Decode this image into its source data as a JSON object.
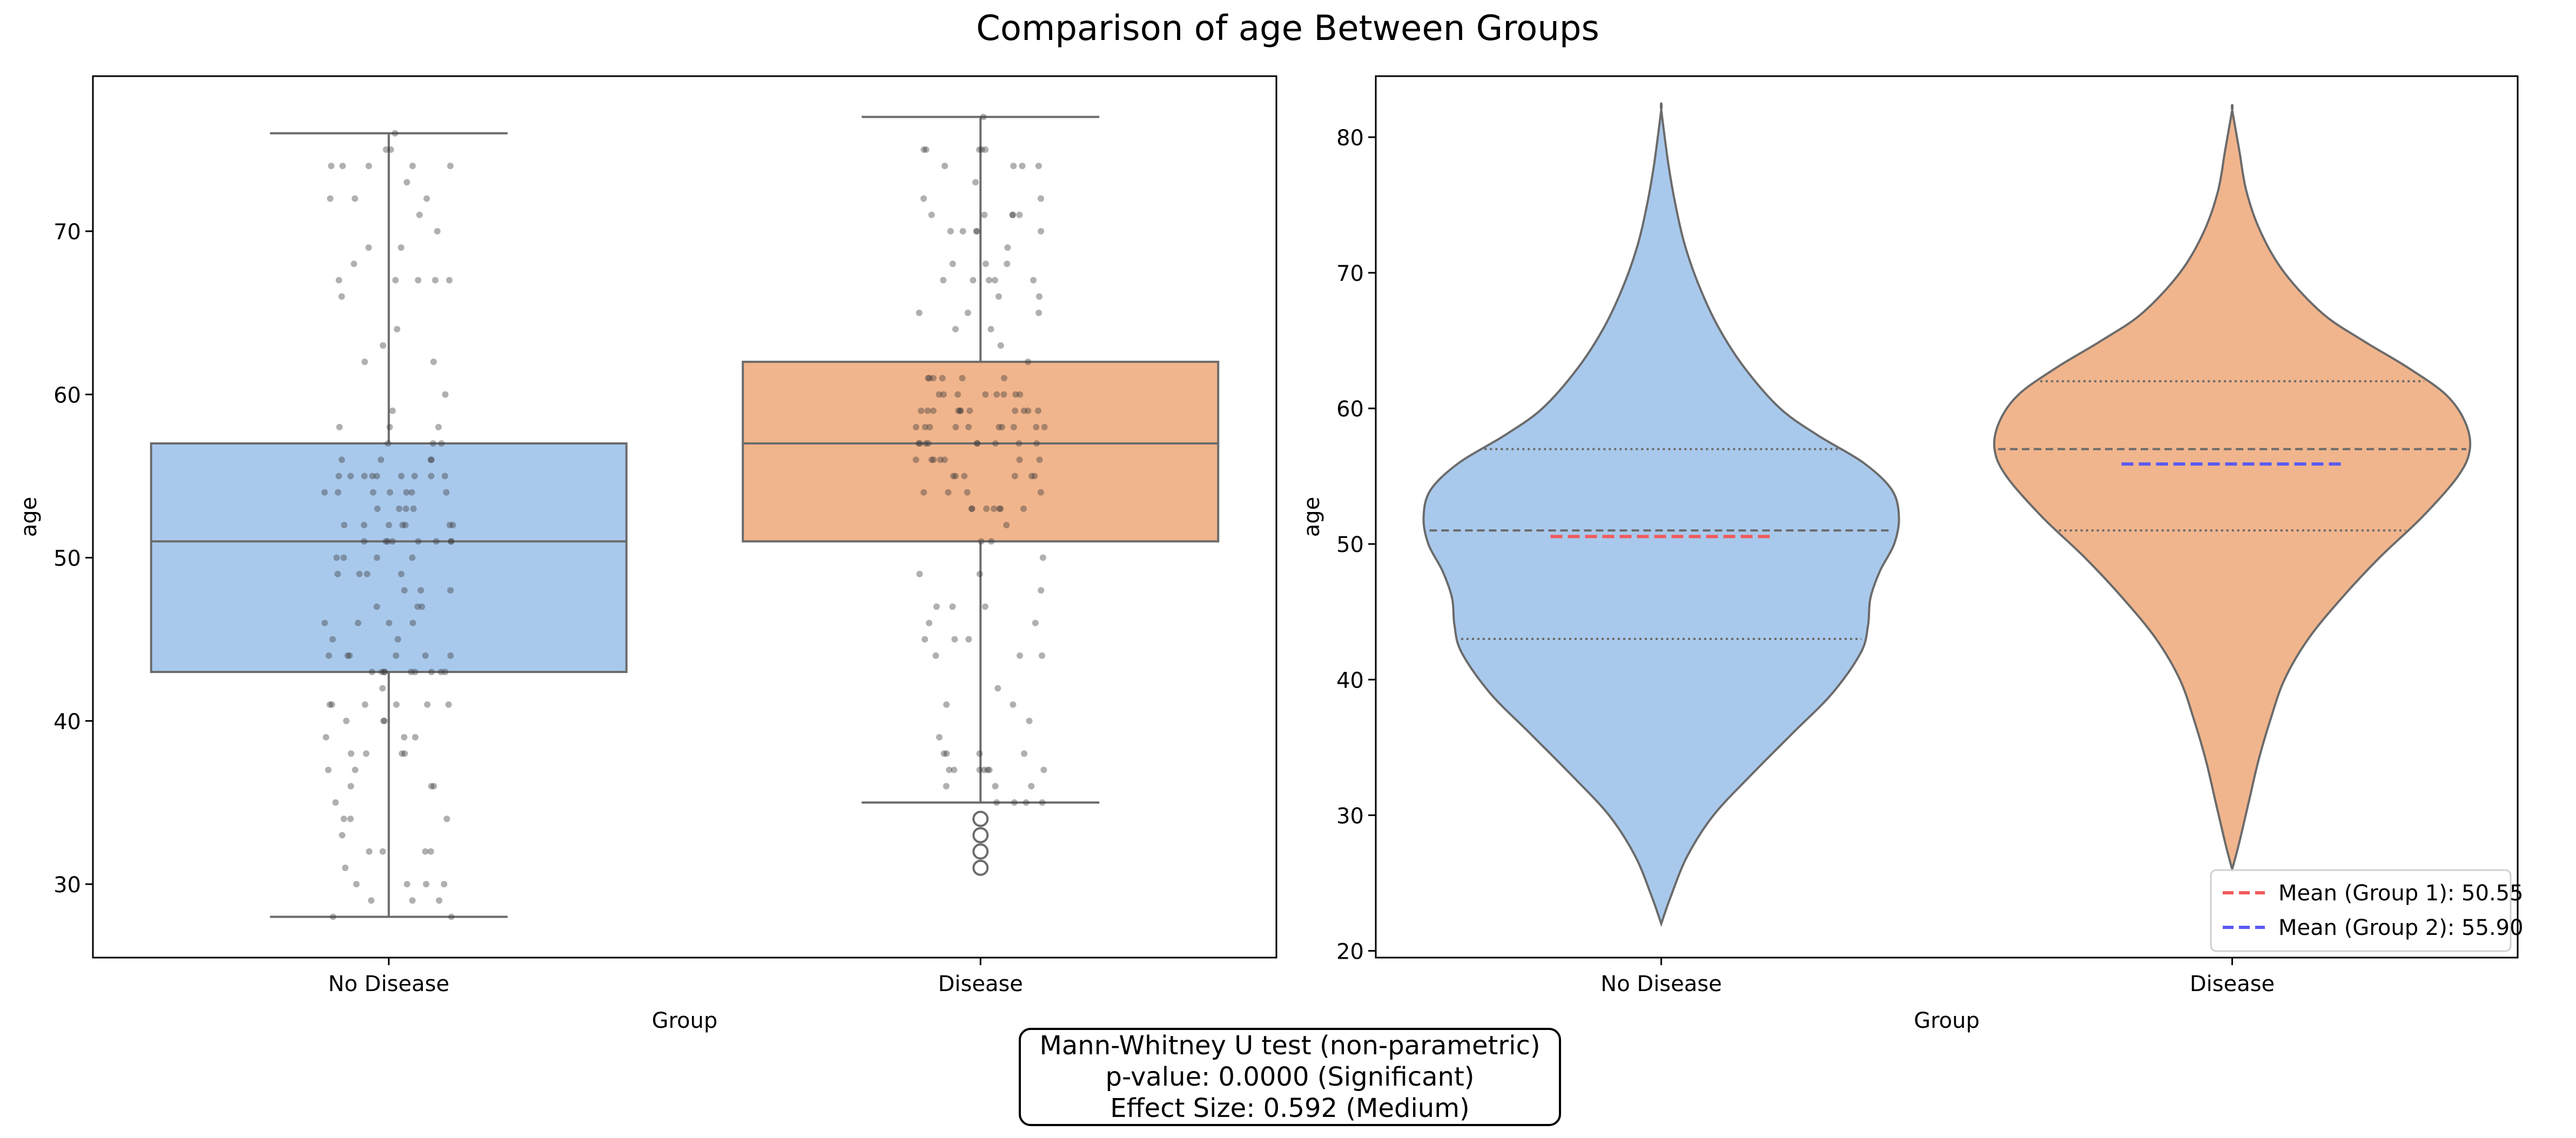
{
  "figure_title": "Comparison of age Between Groups",
  "colors": {
    "no_disease": "#a9c9ec",
    "disease": "#f1b58d",
    "edge": "#6b6b6b",
    "points": "#3a3a3a",
    "mean_group1": "#f25a5a",
    "mean_group2": "#5a5af2"
  },
  "chart_data": [
    {
      "type": "box",
      "xlabel": "Group",
      "ylabel": "age",
      "categories": [
        "No Disease",
        "Disease"
      ],
      "ylim": [
        25.5,
        79.5
      ],
      "yticks": [
        30,
        40,
        50,
        60,
        70
      ],
      "boxes": [
        {
          "category": "No Disease",
          "whisker_low": 28,
          "q1": 43,
          "median": 51,
          "q3": 57,
          "whisker_high": 76,
          "outliers": []
        },
        {
          "category": "Disease",
          "whisker_low": 35,
          "q1": 51,
          "median": 57,
          "q3": 62,
          "whisker_high": 77,
          "outliers": [
            31,
            32,
            33,
            34
          ]
        }
      ],
      "strip_points": true
    },
    {
      "type": "violin",
      "xlabel": "Group",
      "ylabel": "age",
      "categories": [
        "No Disease",
        "Disease"
      ],
      "ylim": [
        19.5,
        84.5
      ],
      "yticks": [
        20,
        30,
        40,
        50,
        60,
        70,
        80
      ],
      "violins": [
        {
          "category": "No Disease",
          "min": 22,
          "max": 82,
          "q1": 43,
          "median": 51,
          "q3": 57,
          "mean": 50.55,
          "density_profile": [
            [
              22,
              0.0
            ],
            [
              24,
              0.04
            ],
            [
              27,
              0.11
            ],
            [
              30,
              0.22
            ],
            [
              33,
              0.38
            ],
            [
              36,
              0.55
            ],
            [
              39,
              0.72
            ],
            [
              42,
              0.84
            ],
            [
              44,
              0.87
            ],
            [
              46,
              0.88
            ],
            [
              48,
              0.92
            ],
            [
              50,
              0.98
            ],
            [
              52,
              1.0
            ],
            [
              54,
              0.97
            ],
            [
              56,
              0.85
            ],
            [
              58,
              0.66
            ],
            [
              60,
              0.5
            ],
            [
              63,
              0.35
            ],
            [
              66,
              0.24
            ],
            [
              69,
              0.16
            ],
            [
              72,
              0.1
            ],
            [
              75,
              0.06
            ],
            [
              78,
              0.03
            ],
            [
              82,
              0.0
            ]
          ]
        },
        {
          "category": "Disease",
          "min": 26,
          "max": 82,
          "q1": 51,
          "median": 57,
          "q3": 62,
          "mean": 55.9,
          "density_profile": [
            [
              26,
              0.0
            ],
            [
              28,
              0.03
            ],
            [
              31,
              0.07
            ],
            [
              34,
              0.11
            ],
            [
              37,
              0.16
            ],
            [
              40,
              0.22
            ],
            [
              43,
              0.32
            ],
            [
              46,
              0.46
            ],
            [
              49,
              0.62
            ],
            [
              52,
              0.8
            ],
            [
              55,
              0.95
            ],
            [
              57,
              1.0
            ],
            [
              59,
              0.98
            ],
            [
              61,
              0.9
            ],
            [
              63,
              0.74
            ],
            [
              65,
              0.55
            ],
            [
              67,
              0.38
            ],
            [
              70,
              0.22
            ],
            [
              73,
              0.12
            ],
            [
              76,
              0.06
            ],
            [
              79,
              0.03
            ],
            [
              82,
              0.0
            ]
          ]
        }
      ],
      "legend": {
        "placement": "lower-right",
        "entries": [
          {
            "label": "Mean (Group 1): 50.55",
            "color": "#f25a5a",
            "style": "dashed"
          },
          {
            "label": "Mean (Group 2): 55.90",
            "color": "#5a5af2",
            "style": "dashed"
          }
        ]
      }
    }
  ],
  "stats_box": {
    "line1": "Mann-Whitney U test (non-parametric)",
    "line2": "p-value: 0.0000 (Significant)",
    "line3": "Effect Size: 0.592 (Medium)"
  }
}
